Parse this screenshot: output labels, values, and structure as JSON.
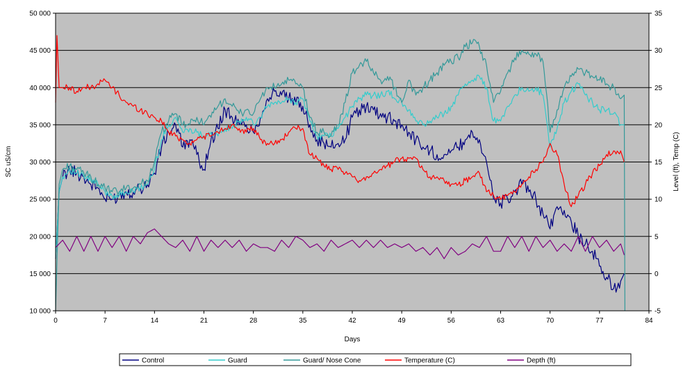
{
  "chart_data": {
    "type": "line",
    "title": "",
    "xlabel": "Days",
    "ylabel_left": "SC uS/cm",
    "ylabel_right": "Level (ft), Temp (C)",
    "xlim": [
      0,
      84
    ],
    "x_ticks": [
      0,
      7,
      14,
      21,
      28,
      35,
      42,
      49,
      56,
      63,
      70,
      77,
      84
    ],
    "ylim_left": [
      10000,
      50000
    ],
    "y_ticks_left": [
      10000,
      15000,
      20000,
      25000,
      30000,
      35000,
      40000,
      45000,
      50000
    ],
    "y_tick_labels_left": [
      "10 000",
      "15 000",
      "20 000",
      "25 000",
      "30 000",
      "35 000",
      "40 000",
      "45 000",
      "50 000"
    ],
    "ylim_right": [
      -5,
      35
    ],
    "y_ticks_right": [
      -5,
      0,
      5,
      10,
      15,
      20,
      25,
      30,
      35
    ],
    "grid": "horizontal",
    "plot_background": "#c0c0c0",
    "legend_position": "bottom",
    "series": [
      {
        "name": "Control",
        "axis": "left",
        "color": "#000080",
        "x": [
          0,
          0.5,
          1,
          2,
          3,
          4,
          5,
          6,
          7,
          8,
          9,
          10,
          11,
          12,
          13,
          14,
          15,
          16,
          17,
          18,
          19,
          20,
          21,
          22,
          23,
          24,
          25,
          26,
          27,
          28,
          29,
          30,
          31,
          32,
          33,
          34,
          35,
          36,
          37,
          38,
          39,
          40,
          41,
          42,
          43,
          44,
          45,
          46,
          47,
          48,
          49,
          50,
          51,
          52,
          53,
          54,
          55,
          56,
          57,
          58,
          59,
          60,
          61,
          62,
          63,
          64,
          65,
          66,
          67,
          68,
          69,
          70,
          71,
          72,
          73,
          74,
          75,
          76,
          77,
          78,
          79,
          80,
          80.5
        ],
        "y": [
          17000,
          26000,
          28000,
          29000,
          28500,
          28000,
          27000,
          26500,
          25000,
          25000,
          25500,
          26000,
          26000,
          26500,
          27000,
          28500,
          32000,
          34000,
          35000,
          32000,
          33000,
          31000,
          29000,
          33000,
          34500,
          37000,
          36000,
          35000,
          35000,
          34000,
          36000,
          38500,
          39500,
          39000,
          38500,
          38000,
          37500,
          35000,
          33000,
          32500,
          32000,
          32500,
          33000,
          36000,
          37000,
          37500,
          37000,
          36500,
          36000,
          35500,
          35000,
          34000,
          33000,
          32000,
          31500,
          31000,
          31000,
          31500,
          32000,
          33000,
          34000,
          33000,
          30000,
          25000,
          24500,
          25000,
          26000,
          27000,
          26000,
          25000,
          23000,
          21000,
          24000,
          23500,
          22000,
          20000,
          19000,
          18000,
          16000,
          14500,
          13000,
          14000,
          15000
        ]
      },
      {
        "name": "Guard",
        "axis": "left",
        "color": "#33cccc",
        "x": [
          0,
          0.5,
          1,
          2,
          3,
          4,
          5,
          6,
          7,
          8,
          9,
          10,
          11,
          12,
          13,
          14,
          15,
          16,
          17,
          18,
          19,
          20,
          21,
          22,
          23,
          24,
          25,
          26,
          27,
          28,
          29,
          30,
          31,
          32,
          33,
          34,
          35,
          36,
          37,
          38,
          39,
          40,
          41,
          42,
          43,
          44,
          45,
          46,
          47,
          48,
          49,
          50,
          51,
          52,
          53,
          54,
          55,
          56,
          57,
          58,
          59,
          60,
          61,
          62,
          63,
          64,
          65,
          66,
          67,
          68,
          69,
          70,
          71,
          72,
          73,
          74,
          75,
          76,
          77,
          78,
          79,
          80,
          80.5
        ],
        "y": [
          17000,
          26000,
          28000,
          29000,
          28500,
          28000,
          27500,
          27000,
          26000,
          25500,
          25500,
          26000,
          26000,
          26500,
          27000,
          29000,
          33000,
          35000,
          36000,
          34000,
          34500,
          34000,
          33500,
          34000,
          33500,
          34500,
          34500,
          35500,
          36000,
          35000,
          36000,
          37500,
          38000,
          38000,
          38500,
          38000,
          38500,
          35500,
          33500,
          33500,
          33500,
          34500,
          36000,
          37500,
          38500,
          39000,
          39000,
          39000,
          39500,
          38500,
          38000,
          37000,
          35500,
          35000,
          35500,
          36000,
          36500,
          37500,
          39000,
          40500,
          41000,
          41500,
          40000,
          35500,
          35500,
          37500,
          39000,
          40000,
          39500,
          40000,
          39000,
          32000,
          34500,
          38000,
          39500,
          40500,
          39000,
          38000,
          37000,
          37000,
          36500,
          35000,
          35000
        ]
      },
      {
        "name": "Guard/ Nose Cone",
        "axis": "left",
        "color": "#339999",
        "x": [
          0,
          0.5,
          1,
          2,
          3,
          4,
          5,
          6,
          7,
          8,
          9,
          10,
          11,
          12,
          13,
          14,
          15,
          16,
          17,
          18,
          19,
          20,
          21,
          22,
          23,
          24,
          25,
          26,
          27,
          28,
          29,
          30,
          31,
          32,
          33,
          34,
          35,
          36,
          37,
          38,
          39,
          40,
          41,
          42,
          43,
          44,
          45,
          46,
          47,
          48,
          49,
          50,
          51,
          52,
          53,
          54,
          55,
          56,
          57,
          58,
          59,
          60,
          61,
          62,
          63,
          64,
          65,
          66,
          67,
          68,
          69,
          70,
          71,
          72,
          73,
          74,
          75,
          76,
          77,
          78,
          79,
          80,
          80.5,
          80.6
        ],
        "y": [
          10000,
          27000,
          29000,
          29500,
          29000,
          28500,
          28000,
          27000,
          26500,
          26000,
          26000,
          26500,
          26500,
          27000,
          27500,
          30000,
          34000,
          35500,
          36500,
          35000,
          35000,
          36000,
          35000,
          36000,
          37500,
          38500,
          37500,
          36500,
          37000,
          36500,
          38500,
          40000,
          40000,
          40500,
          41000,
          40500,
          40000,
          36000,
          34000,
          34000,
          33500,
          35000,
          38000,
          42000,
          43000,
          43500,
          42000,
          41000,
          41500,
          40000,
          38000,
          41000,
          39000,
          40000,
          41000,
          42000,
          43000,
          43500,
          44000,
          45500,
          46000,
          45500,
          43000,
          38000,
          39500,
          42000,
          44000,
          45000,
          44500,
          44500,
          43500,
          34000,
          37000,
          40000,
          41500,
          42500,
          42000,
          41500,
          41000,
          40500,
          40000,
          38500,
          39000,
          10000
        ]
      },
      {
        "name": "Temperature (C)",
        "axis": "right",
        "color": "#ff0000",
        "x": [
          0,
          0.2,
          0.5,
          1,
          2,
          3,
          4,
          5,
          6,
          7,
          8,
          9,
          10,
          11,
          12,
          13,
          14,
          15,
          16,
          17,
          18,
          19,
          20,
          21,
          22,
          23,
          24,
          25,
          26,
          27,
          28,
          29,
          30,
          31,
          32,
          33,
          34,
          35,
          36,
          37,
          38,
          39,
          40,
          41,
          42,
          43,
          44,
          45,
          46,
          47,
          48,
          49,
          50,
          51,
          52,
          53,
          54,
          55,
          56,
          57,
          58,
          59,
          60,
          61,
          62,
          63,
          64,
          65,
          66,
          67,
          68,
          69,
          70,
          71,
          72,
          73,
          74,
          75,
          76,
          77,
          78,
          79,
          80,
          80.5
        ],
        "y": [
          23,
          32,
          25,
          25,
          25,
          24.5,
          25,
          25,
          25.5,
          26,
          25,
          24,
          23,
          22.5,
          22,
          21.5,
          21,
          20.5,
          19,
          18.5,
          18,
          17.5,
          18,
          18.5,
          18.5,
          19,
          19.5,
          20,
          19.5,
          19,
          19.5,
          18,
          17.5,
          17.5,
          18,
          19,
          19.5,
          19.5,
          16,
          15.5,
          14.5,
          14,
          14,
          13.5,
          13,
          12.5,
          13,
          13.5,
          14,
          14.5,
          15,
          15.5,
          15.5,
          15.5,
          14,
          13,
          13,
          12.5,
          12,
          12,
          12.5,
          13,
          13.5,
          11,
          10.5,
          10,
          10.5,
          11,
          12,
          13,
          14,
          15,
          17.5,
          16,
          12,
          9,
          10.5,
          12,
          13.5,
          14.5,
          16,
          16.5,
          16.5,
          15
        ]
      },
      {
        "name": "Depth (ft)",
        "axis": "right",
        "color": "#800080",
        "x": [
          0,
          1,
          2,
          3,
          4,
          5,
          6,
          7,
          8,
          9,
          10,
          11,
          12,
          13,
          14,
          15,
          16,
          17,
          18,
          19,
          20,
          21,
          22,
          23,
          24,
          25,
          26,
          27,
          28,
          29,
          30,
          31,
          32,
          33,
          34,
          35,
          36,
          37,
          38,
          39,
          40,
          41,
          42,
          43,
          44,
          45,
          46,
          47,
          48,
          49,
          50,
          51,
          52,
          53,
          54,
          55,
          56,
          57,
          58,
          59,
          60,
          61,
          62,
          63,
          64,
          65,
          66,
          67,
          68,
          69,
          70,
          71,
          72,
          73,
          74,
          75,
          76,
          77,
          78,
          79,
          80,
          80.5
        ],
        "y": [
          3.5,
          4.5,
          3,
          5,
          3,
          5,
          3,
          5,
          3.5,
          5,
          3,
          5,
          4,
          5.5,
          6,
          5,
          4,
          3.5,
          4.5,
          3,
          5,
          3,
          4.5,
          3.5,
          4.5,
          3.5,
          4.5,
          3,
          4,
          3.5,
          3.5,
          3,
          4.5,
          3.5,
          5,
          4.5,
          3.5,
          4,
          3,
          4.5,
          3.5,
          4,
          4.5,
          3.5,
          4.5,
          3.5,
          4.5,
          3.5,
          4,
          3.5,
          4,
          3,
          3.5,
          2.5,
          3.5,
          2,
          3.5,
          2.5,
          3,
          4,
          3.5,
          5,
          3,
          3,
          5,
          3.5,
          5,
          3,
          5,
          3.5,
          4.5,
          3,
          4,
          3,
          5,
          3,
          5,
          3.5,
          4.5,
          3,
          4,
          2.5
        ]
      }
    ]
  }
}
